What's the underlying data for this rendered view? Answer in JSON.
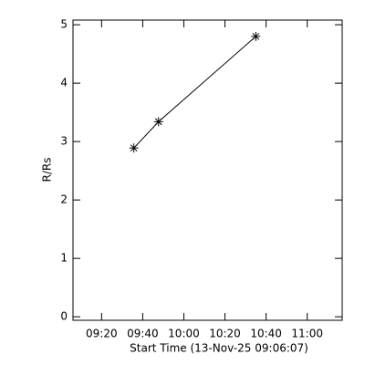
{
  "chart_data": {
    "type": "line",
    "xlabel": "Start Time (13-Nov-25 09:06:07)",
    "ylabel": "R/Rs",
    "x": [
      575.7,
      587.7,
      635.0
    ],
    "values": [
      2.89,
      3.34,
      4.8
    ],
    "color": "#000000",
    "marker": "asterisk",
    "xlim": [
      546.1,
      677.0
    ],
    "ylim": [
      -0.06,
      5.08
    ],
    "xticks": [
      {
        "value": 560,
        "label": "09:20"
      },
      {
        "value": 580,
        "label": "09:40"
      },
      {
        "value": 600,
        "label": "10:00"
      },
      {
        "value": 620,
        "label": "10:20"
      },
      {
        "value": 640,
        "label": "10:40"
      },
      {
        "value": 660,
        "label": "11:00"
      }
    ],
    "yticks": [
      0,
      1,
      2,
      3,
      4,
      5
    ]
  }
}
